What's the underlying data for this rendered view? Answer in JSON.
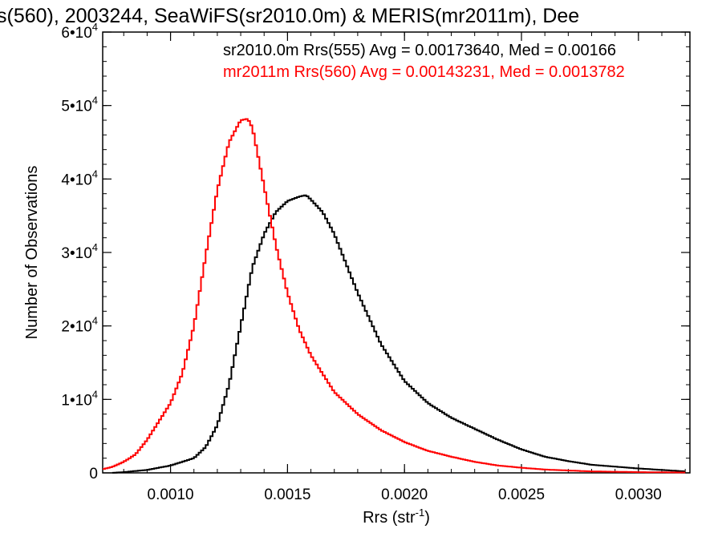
{
  "chart_data": {
    "type": "line",
    "title": "s(560), 2003244, SeaWiFS(sr2010.0m) & MERIS(mr2011m), Dee",
    "xlabel": "Rrs (str",
    "xlabel_sup": "-1",
    "xlabel_close": ")",
    "ylabel": "Number of Observations",
    "xlim": [
      0.00071,
      0.00322
    ],
    "ylim": [
      0,
      60000
    ],
    "x_ticks": [
      {
        "value": 0.001,
        "label": "0.0010"
      },
      {
        "value": 0.0015,
        "label": "0.0015"
      },
      {
        "value": 0.002,
        "label": "0.0020"
      },
      {
        "value": 0.0025,
        "label": "0.0025"
      },
      {
        "value": 0.003,
        "label": "0.0030"
      }
    ],
    "y_ticks": [
      {
        "value": 0,
        "base": "0",
        "exp": ""
      },
      {
        "value": 10000,
        "base": "1•10",
        "exp": "4"
      },
      {
        "value": 20000,
        "base": "2•10",
        "exp": "4"
      },
      {
        "value": 30000,
        "base": "3•10",
        "exp": "4"
      },
      {
        "value": 40000,
        "base": "4•10",
        "exp": "4"
      },
      {
        "value": 50000,
        "base": "5•10",
        "exp": "4"
      },
      {
        "value": 60000,
        "base": "6•10",
        "exp": "4"
      }
    ],
    "grid": false,
    "legend_position": "top-right",
    "series": [
      {
        "name": "sr2010.0m Rrs(555) Avg = 0.00173640, Med = 0.00166",
        "color": "#000000",
        "x": [
          0.00075,
          0.0008,
          0.0009,
          0.001,
          0.0011,
          0.00115,
          0.0012,
          0.00125,
          0.0013,
          0.00135,
          0.0014,
          0.00145,
          0.0015,
          0.00155,
          0.00158,
          0.0016,
          0.00165,
          0.0017,
          0.00175,
          0.0018,
          0.00185,
          0.0019,
          0.002,
          0.0021,
          0.0022,
          0.0023,
          0.0024,
          0.0025,
          0.0026,
          0.0027,
          0.0028,
          0.003,
          0.0032
        ],
        "y": [
          0,
          100,
          400,
          1000,
          2000,
          3500,
          6500,
          12000,
          20000,
          28000,
          32500,
          35500,
          37000,
          37600,
          37800,
          37200,
          35500,
          32500,
          28500,
          24500,
          21000,
          17500,
          12500,
          9500,
          7500,
          6000,
          4500,
          3200,
          2200,
          1600,
          1100,
          600,
          200
        ]
      },
      {
        "name": "mr2011m Rrs(560) Avg = 0.00143231, Med = 0.0013782",
        "color": "#ff0000",
        "x": [
          0.00071,
          0.00075,
          0.0008,
          0.00085,
          0.0009,
          0.00095,
          0.001,
          0.00105,
          0.0011,
          0.00115,
          0.0012,
          0.00125,
          0.0013,
          0.00133,
          0.00135,
          0.0014,
          0.00145,
          0.0015,
          0.00155,
          0.0016,
          0.0017,
          0.0018,
          0.0019,
          0.002,
          0.0021,
          0.0022,
          0.0023,
          0.0024,
          0.0025,
          0.0026,
          0.0028,
          0.003,
          0.0032
        ],
        "y": [
          500,
          800,
          1500,
          2500,
          4500,
          7000,
          9500,
          13500,
          20000,
          29500,
          38500,
          45000,
          48000,
          48200,
          47000,
          39000,
          31000,
          24500,
          19500,
          16000,
          11000,
          8000,
          5800,
          4200,
          3000,
          2200,
          1500,
          1000,
          700,
          450,
          200,
          100,
          50
        ]
      }
    ]
  }
}
